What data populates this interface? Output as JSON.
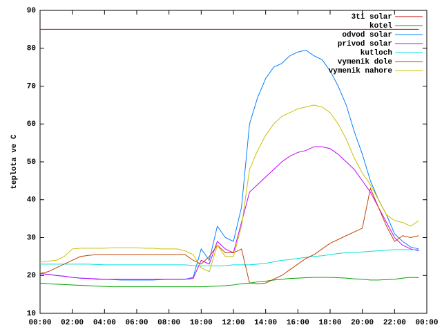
{
  "chart_data": {
    "type": "line",
    "ylabel": "teplota ve C",
    "x": [
      0,
      0.5,
      1,
      1.5,
      2,
      2.5,
      3,
      3.5,
      4,
      4.5,
      5,
      5.5,
      6,
      6.5,
      7,
      7.5,
      8,
      8.5,
      9,
      9.5,
      10,
      10.5,
      11,
      11.5,
      12,
      12.5,
      13,
      13.5,
      14,
      14.5,
      15,
      15.5,
      16,
      16.5,
      17,
      17.5,
      18,
      18.5,
      19,
      19.5,
      20,
      20.5,
      21,
      21.5,
      22,
      22.5,
      23,
      23.5
    ],
    "xlim": [
      0,
      24
    ],
    "xticks": [
      {
        "value": 0,
        "label": "00:00"
      },
      {
        "value": 2,
        "label": "02:00"
      },
      {
        "value": 4,
        "label": "04:00"
      },
      {
        "value": 6,
        "label": "06:00"
      },
      {
        "value": 8,
        "label": "08:00"
      },
      {
        "value": 10,
        "label": "10:00"
      },
      {
        "value": 12,
        "label": "12:00"
      },
      {
        "value": 14,
        "label": "14:00"
      },
      {
        "value": 16,
        "label": "16:00"
      },
      {
        "value": 18,
        "label": "18:00"
      },
      {
        "value": 20,
        "label": "20:00"
      },
      {
        "value": 22,
        "label": "22:00"
      },
      {
        "value": 24,
        "label": "00:00"
      }
    ],
    "ylim": [
      10,
      90
    ],
    "yticks": [
      10,
      20,
      30,
      40,
      50,
      60,
      70,
      80,
      90
    ],
    "legend": "top right",
    "series": [
      {
        "name": "3ti solar",
        "color": "#c00000",
        "values": [
          85,
          85,
          85,
          85,
          85,
          85,
          85,
          85,
          85,
          85,
          85,
          85,
          85,
          85,
          85,
          85,
          85,
          85,
          85,
          85,
          85,
          85,
          85,
          85,
          85,
          85,
          85,
          85,
          85,
          85,
          85,
          85,
          85,
          85,
          85,
          85,
          85,
          85,
          85,
          85,
          85,
          85,
          85,
          85,
          85,
          85,
          85,
          85
        ]
      },
      {
        "name": "kotel",
        "color": "#00a000",
        "values": [
          18,
          17.8,
          17.7,
          17.6,
          17.5,
          17.4,
          17.3,
          17.2,
          17.1,
          17,
          17,
          17,
          17,
          17,
          17,
          17,
          17,
          17,
          17,
          17,
          17,
          17.1,
          17.2,
          17.3,
          17.5,
          17.8,
          18,
          18.3,
          18.5,
          18.8,
          19,
          19.2,
          19.3,
          19.4,
          19.5,
          19.5,
          19.5,
          19.4,
          19.3,
          19.1,
          19,
          18.8,
          18.8,
          18.9,
          19,
          19.3,
          19.5,
          19.4
        ]
      },
      {
        "name": "odvod solar",
        "color": "#0080ff",
        "values": [
          20.5,
          20.3,
          20,
          19.8,
          19.5,
          19.3,
          19.2,
          19,
          19,
          18.9,
          18.8,
          18.8,
          18.8,
          18.8,
          18.8,
          18.9,
          19,
          19,
          19,
          19.5,
          27,
          24,
          33,
          30,
          29,
          38,
          60,
          67,
          72,
          75,
          76,
          78,
          79,
          79.5,
          78,
          77,
          74,
          70,
          65,
          58,
          52,
          45,
          40,
          36,
          31,
          29,
          27.5,
          27
        ]
      },
      {
        "name": "privod solar",
        "color": "#c000ff",
        "values": [
          20.5,
          20.3,
          20,
          19.8,
          19.5,
          19.3,
          19.2,
          19.1,
          19,
          19,
          19,
          19,
          19,
          19,
          19,
          19,
          19,
          19,
          19,
          19.2,
          24,
          23,
          29,
          27,
          26,
          34,
          42,
          44,
          46,
          48,
          50,
          51.5,
          52.5,
          53,
          54,
          54,
          53.5,
          52,
          50,
          48,
          45,
          42,
          38,
          34,
          30,
          28,
          27,
          26.5
        ]
      },
      {
        "name": "kutloch",
        "color": "#00e0e0",
        "values": [
          23,
          23,
          23,
          23,
          23,
          23,
          23,
          22.9,
          22.8,
          22.8,
          22.8,
          22.8,
          22.8,
          22.8,
          22.8,
          22.8,
          22.8,
          22.8,
          22.8,
          22.6,
          22.5,
          22.5,
          22.5,
          22.6,
          22.8,
          22.8,
          22.8,
          23,
          23.2,
          23.6,
          24,
          24.2,
          24.5,
          24.8,
          25,
          25.2,
          25.5,
          25.8,
          26,
          26.1,
          26.2,
          26.4,
          26.5,
          26.7,
          26.8,
          26.8,
          26.8,
          26.8
        ]
      },
      {
        "name": "vymenik dole",
        "color": "#c04000",
        "values": [
          20.5,
          21,
          22,
          23,
          24,
          25,
          25.3,
          25.5,
          25.5,
          25.5,
          25.5,
          25.5,
          25.5,
          25.5,
          25.5,
          25.5,
          25.5,
          25.5,
          25.5,
          24,
          23,
          25,
          28,
          26,
          26,
          27,
          18,
          17.8,
          18,
          19,
          20,
          21.5,
          23,
          24.5,
          25.5,
          27,
          28.5,
          29.5,
          30.5,
          31.5,
          32.5,
          43,
          38,
          33,
          29,
          30.5,
          30,
          30.5
        ]
      },
      {
        "name": "vymenik nahore",
        "color": "#c8c000",
        "values": [
          23.5,
          23.8,
          24,
          25,
          27,
          27.2,
          27.2,
          27.2,
          27.2,
          27.3,
          27.3,
          27.3,
          27.3,
          27.2,
          27.2,
          27,
          27,
          27,
          26.5,
          25.5,
          22,
          21,
          28,
          25,
          25,
          33,
          48,
          53,
          57,
          60,
          62,
          63,
          64,
          64.5,
          65,
          64.5,
          63,
          60,
          56,
          51,
          47,
          44,
          40,
          36,
          34.5,
          34,
          33,
          34.5
        ]
      }
    ]
  }
}
